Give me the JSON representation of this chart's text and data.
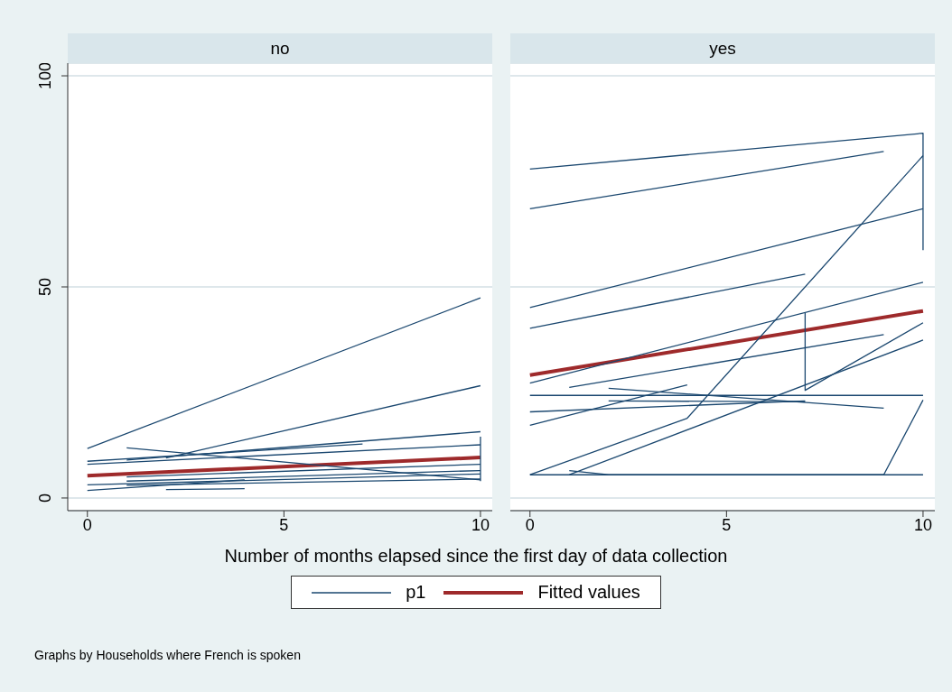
{
  "chart_data": [
    {
      "type": "line",
      "title": "no",
      "xlabel": "Number of months elapsed since the first day of data collection",
      "annotations": [
        "Graphs by Households where French is spoken"
      ],
      "xlim": [
        -0.5,
        10.3
      ],
      "xticks": [
        0,
        5,
        10
      ],
      "ylim": [
        -3,
        103
      ],
      "yticks": [
        0,
        50,
        100
      ],
      "grid": "y",
      "legend": "bottom",
      "marker": "none",
      "series": [
        {
          "name": "p1",
          "color": "#1a476f",
          "x": [
            0,
            10
          ],
          "values": [
            11.7,
            47.4
          ]
        },
        {
          "name": "Fitted values",
          "color": "#9e2a2b",
          "x": [
            0,
            10
          ],
          "values": [
            5.3,
            9.6
          ]
        },
        {
          "color": "#1a476f",
          "x": [
            2,
            10
          ],
          "values": [
            9.5,
            26.6
          ]
        },
        {
          "color": "#1a476f",
          "x": [
            1,
            10
          ],
          "values": [
            9,
            15.7
          ]
        },
        {
          "color": "#1a476f",
          "x": [
            1,
            10
          ],
          "values": [
            11.9,
            4.3
          ]
        },
        {
          "color": "#1a476f",
          "x": [
            0,
            7
          ],
          "values": [
            8.7,
            12.8
          ]
        },
        {
          "color": "#1a476f",
          "x": [
            0,
            10
          ],
          "values": [
            8.0,
            12.6
          ]
        },
        {
          "color": "#1a476f",
          "x": [
            0,
            10
          ],
          "values": [
            3.1,
            5.7
          ]
        },
        {
          "color": "#1a476f",
          "x": [
            0,
            4
          ],
          "values": [
            1.8,
            4.3
          ]
        },
        {
          "color": "#1a476f",
          "x": [
            1,
            10
          ],
          "values": [
            3,
            4.5
          ]
        },
        {
          "color": "#1a476f",
          "x": [
            1,
            10
          ],
          "values": [
            4,
            6.5
          ]
        },
        {
          "color": "#1a476f",
          "x": [
            1,
            10
          ],
          "values": [
            5,
            8
          ]
        },
        {
          "color": "#1a476f",
          "x": [
            2,
            4
          ],
          "values": [
            2,
            2.2
          ]
        },
        {
          "color": "#1a476f",
          "x": [
            10,
            10
          ],
          "values": [
            14.5,
            4
          ]
        }
      ]
    },
    {
      "type": "line",
      "title": "yes",
      "xlim": [
        -0.5,
        10.3
      ],
      "xticks": [
        0,
        5,
        10
      ],
      "ylim": [
        -3,
        103
      ],
      "yticks": [
        0,
        50,
        100
      ],
      "grid": "y",
      "tick_labels": "x",
      "marker": "none",
      "series": [
        {
          "color": "#1a476f",
          "x": [
            0,
            10,
            10
          ],
          "values": [
            77.9,
            86.4,
            58.7
          ]
        },
        {
          "color": "#9e2a2b",
          "x": [
            0,
            10
          ],
          "values": [
            29.1,
            44.3
          ]
        },
        {
          "color": "#1a476f",
          "x": [
            0,
            9
          ],
          "values": [
            68.5,
            82.1
          ]
        },
        {
          "color": "#1a476f",
          "x": [
            0,
            10
          ],
          "values": [
            45.1,
            68.5
          ]
        },
        {
          "color": "#1a476f",
          "x": [
            0,
            7
          ],
          "values": [
            40.2,
            53.0
          ]
        },
        {
          "color": "#1a476f",
          "x": [
            0,
            10
          ],
          "values": [
            27.2,
            51.1
          ]
        },
        {
          "color": "#1a476f",
          "x": [
            7,
            7,
            10
          ],
          "values": [
            43.8,
            25.5,
            41.5
          ]
        },
        {
          "color": "#1a476f",
          "x": [
            1,
            9
          ],
          "values": [
            26.2,
            38.7
          ]
        },
        {
          "color": "#1a476f",
          "x": [
            0,
            10
          ],
          "values": [
            24.3,
            24.3
          ]
        },
        {
          "color": "#1a476f",
          "x": [
            0,
            7
          ],
          "values": [
            20.4,
            23
          ]
        },
        {
          "color": "#1a476f",
          "x": [
            0,
            4
          ],
          "values": [
            17.2,
            26.8
          ]
        },
        {
          "color": "#1a476f",
          "x": [
            2,
            9
          ],
          "values": [
            26,
            21.3
          ]
        },
        {
          "color": "#1a476f",
          "x": [
            0,
            4,
            10
          ],
          "values": [
            5.5,
            18.9,
            81.1
          ]
        },
        {
          "color": "#1a476f",
          "x": [
            1,
            10
          ],
          "values": [
            5.5,
            37.4
          ]
        },
        {
          "color": "#1a476f",
          "x": [
            0,
            9,
            10
          ],
          "values": [
            5.5,
            5.5,
            23.2
          ]
        },
        {
          "color": "#1a476f",
          "x": [
            2,
            7
          ],
          "values": [
            23,
            22.8
          ]
        },
        {
          "color": "#1a476f",
          "x": [
            1,
            2,
            10
          ],
          "values": [
            6.5,
            5.5,
            5.5
          ]
        }
      ]
    }
  ]
}
